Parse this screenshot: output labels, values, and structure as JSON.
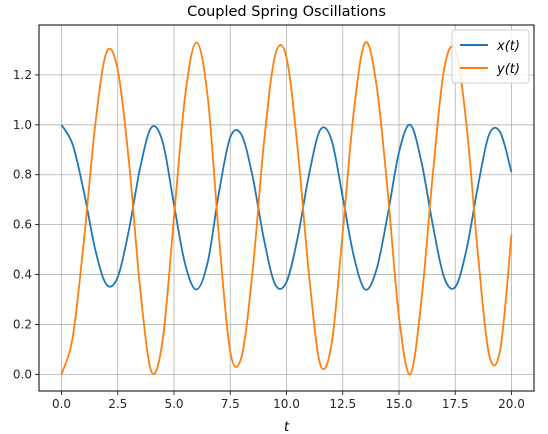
{
  "chart_data": {
    "type": "line",
    "title": "Coupled Spring Oscillations",
    "xlabel": "t",
    "ylabel": "",
    "xlim": [
      -1.0,
      21.0
    ],
    "ylim": [
      -0.0667,
      1.4
    ],
    "grid": true,
    "legend_position": "top-right",
    "xticks": [
      0,
      2.5,
      5,
      7.5,
      10,
      12.5,
      15,
      17.5,
      20
    ],
    "xtick_labels": [
      "0.0",
      "2.5",
      "5.0",
      "7.5",
      "10.0",
      "12.5",
      "15.0",
      "17.5",
      "20.0"
    ],
    "yticks": [
      0,
      0.2,
      0.4,
      0.6,
      0.8,
      1.0,
      1.2
    ],
    "ytick_labels": [
      "0.0",
      "0.2",
      "0.4",
      "0.6",
      "0.8",
      "1.0",
      "1.2"
    ],
    "x": [
      0,
      0.5,
      1,
      1.5,
      2,
      2.5,
      3,
      3.5,
      4,
      4.5,
      5,
      5.5,
      6,
      6.5,
      7,
      7.5,
      8,
      8.5,
      9,
      9.5,
      10,
      10.5,
      11,
      11.5,
      12,
      12.5,
      13,
      13.5,
      14,
      14.5,
      15,
      15.5,
      16,
      16.5,
      17,
      17.5,
      18,
      18.5,
      19,
      19.5,
      20
    ],
    "series": [
      {
        "name": "x(t)",
        "color": "#1f77b4",
        "values": [
          1.0,
          0.92,
          0.73,
          0.5,
          0.36,
          0.39,
          0.58,
          0.83,
          0.99,
          0.93,
          0.68,
          0.44,
          0.34,
          0.45,
          0.73,
          0.95,
          0.96,
          0.79,
          0.54,
          0.36,
          0.37,
          0.55,
          0.8,
          0.98,
          0.94,
          0.71,
          0.47,
          0.34,
          0.42,
          0.64,
          0.89,
          1.0,
          0.85,
          0.6,
          0.39,
          0.35,
          0.5,
          0.75,
          0.96,
          0.97,
          0.81
        ]
      },
      {
        "name": "y(t)",
        "color": "#ff7f0e",
        "values": [
          0.0,
          0.15,
          0.54,
          1.0,
          1.29,
          1.22,
          0.85,
          0.34,
          0.01,
          0.14,
          0.63,
          1.12,
          1.33,
          1.11,
          0.55,
          0.09,
          0.07,
          0.42,
          0.93,
          1.28,
          1.27,
          0.9,
          0.4,
          0.04,
          0.12,
          0.57,
          1.06,
          1.33,
          1.16,
          0.73,
          0.23,
          0.0,
          0.3,
          0.8,
          1.22,
          1.3,
          1.0,
          0.49,
          0.08,
          0.1,
          0.56
        ]
      }
    ]
  }
}
